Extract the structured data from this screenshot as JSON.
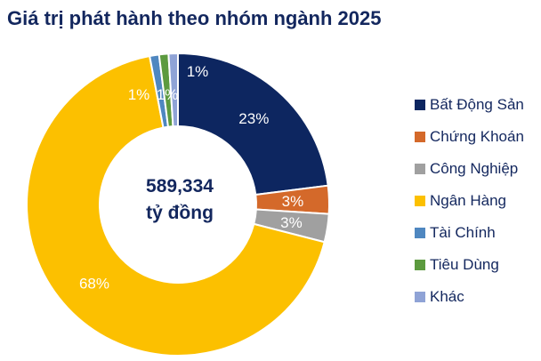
{
  "chart_data": {
    "type": "pie",
    "variant": "donut",
    "title": "Giá trị phát hành theo nhóm ngành 2025",
    "center_label": [
      "589,334",
      "tỷ đồng"
    ],
    "categories": [
      "Bất Động Sản",
      "Chứng Khoán",
      "Công Nghiệp",
      "Ngân Hàng",
      "Tài Chính",
      "Tiêu Dùng",
      "Khác"
    ],
    "values": [
      23,
      3,
      3,
      68,
      1,
      1,
      1
    ],
    "data_labels": [
      "23%",
      "3%",
      "3%",
      "68%",
      "1%",
      "1%",
      "1%"
    ],
    "colors": [
      "#0d2660",
      "#d4692a",
      "#a0a0a0",
      "#fcc000",
      "#4f87c0",
      "#5c9a3f",
      "#8fa3d6"
    ],
    "legend_position": "right"
  }
}
